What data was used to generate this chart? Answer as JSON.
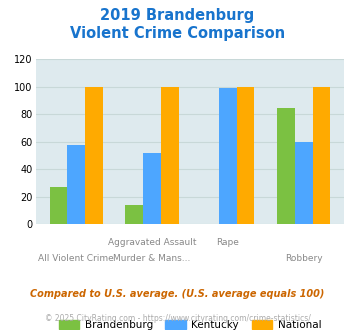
{
  "title_line1": "2019 Brandenburg",
  "title_line2": "Violent Crime Comparison",
  "title_color": "#1874cd",
  "series": [
    {
      "label": "Brandenburg",
      "color": "#7bc142",
      "values": [
        27,
        14,
        0,
        85
      ]
    },
    {
      "label": "Kentucky",
      "color": "#4da6ff",
      "values": [
        58,
        52,
        99,
        60
      ]
    },
    {
      "label": "National",
      "color": "#ffaa00",
      "values": [
        100,
        100,
        100,
        100
      ]
    }
  ],
  "x_labels_top": [
    "",
    "Aggravated Assault",
    "Rape",
    ""
  ],
  "x_labels_bot": [
    "All Violent Crime",
    "Murder & Mans...",
    "",
    "Robbery"
  ],
  "ylim": [
    0,
    120
  ],
  "yticks": [
    0,
    20,
    40,
    60,
    80,
    100,
    120
  ],
  "grid_color": "#c8d8d8",
  "bg_color": "#deeaee",
  "legend": [
    {
      "label": "Brandenburg",
      "color": "#7bc142"
    },
    {
      "label": "Kentucky",
      "color": "#4da6ff"
    },
    {
      "label": "National",
      "color": "#ffaa00"
    }
  ],
  "footnote1": "Compared to U.S. average. (U.S. average equals 100)",
  "footnote2": "© 2025 CityRating.com - https://www.cityrating.com/crime-statistics/",
  "footnote1_color": "#cc6600",
  "footnote2_color": "#aaaaaa",
  "footnote2_link_color": "#4da6ff"
}
